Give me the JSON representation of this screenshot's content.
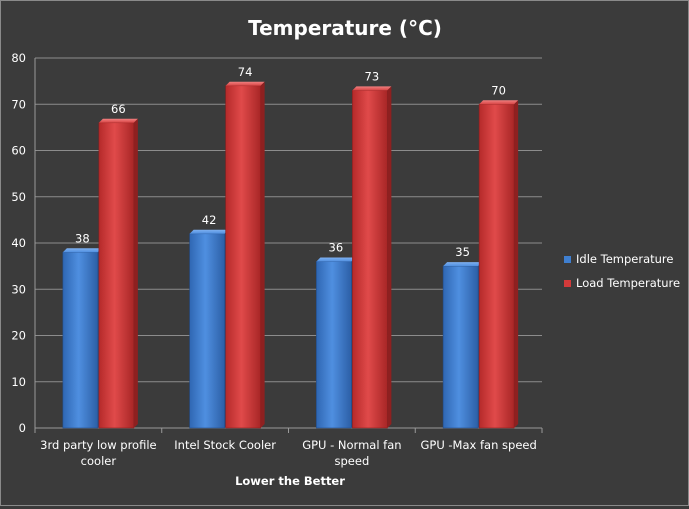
{
  "chart_data": {
    "type": "bar",
    "title": "Temperature (°C)",
    "xlabel": "Lower the Better",
    "ylabel": "",
    "ylim": [
      0,
      80
    ],
    "yticks": [
      0,
      10,
      20,
      30,
      40,
      50,
      60,
      70,
      80
    ],
    "grid": true,
    "legend_position": "right",
    "categories": [
      [
        "3rd party low profile",
        "cooler"
      ],
      [
        "Intel Stock Cooler"
      ],
      [
        "GPU - Normal fan",
        "speed"
      ],
      [
        "GPU -Max fan speed"
      ]
    ],
    "series": [
      {
        "name": "Idle Temperature",
        "values": [
          38,
          42,
          36,
          35
        ],
        "color": "#3f7fd0"
      },
      {
        "name": "Load Temperature",
        "values": [
          66,
          74,
          73,
          70
        ],
        "color": "#d23a3a"
      }
    ]
  }
}
